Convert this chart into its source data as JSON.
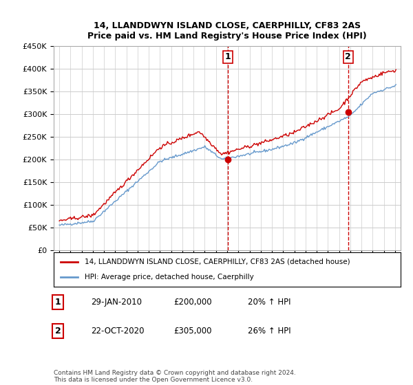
{
  "title": "14, LLANDDWYN ISLAND CLOSE, CAERPHILLY, CF83 2AS",
  "subtitle": "Price paid vs. HM Land Registry's House Price Index (HPI)",
  "legend_line1": "14, LLANDDWYN ISLAND CLOSE, CAERPHILLY, CF83 2AS (detached house)",
  "legend_line2": "HPI: Average price, detached house, Caerphilly",
  "annotation1_label": "1",
  "annotation1_date": "29-JAN-2010",
  "annotation1_price": "£200,000",
  "annotation1_hpi": "20% ↑ HPI",
  "annotation2_label": "2",
  "annotation2_date": "22-OCT-2020",
  "annotation2_price": "£305,000",
  "annotation2_hpi": "26% ↑ HPI",
  "footnote": "Contains HM Land Registry data © Crown copyright and database right 2024.\nThis data is licensed under the Open Government Licence v3.0.",
  "sale1_year": 2010.08,
  "sale1_value": 200000,
  "sale2_year": 2020.81,
  "sale2_value": 305000,
  "hpi_color": "#6699cc",
  "price_color": "#cc0000",
  "vline_color": "#cc0000",
  "dot_color": "#cc0000",
  "ylim_min": 0,
  "ylim_max": 450000,
  "xlim_min": 1994.5,
  "xlim_max": 2025.5
}
